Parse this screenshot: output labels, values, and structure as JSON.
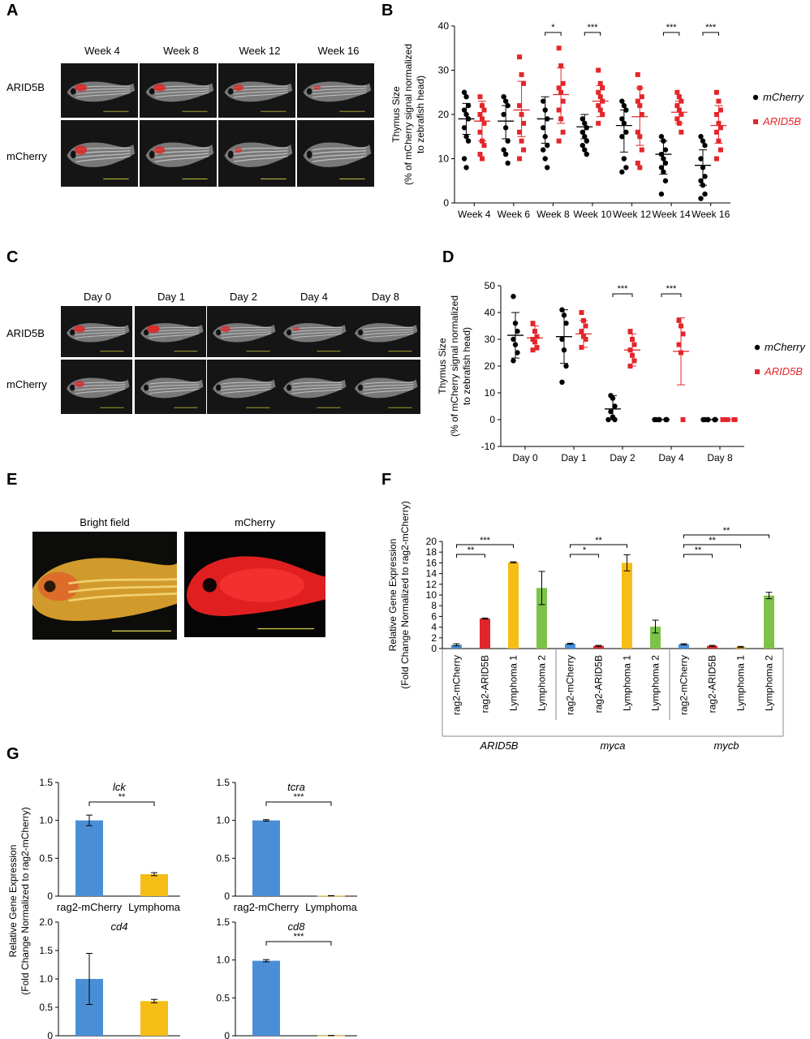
{
  "panels": {
    "A": {
      "label": "A",
      "columns": [
        "Week 4",
        "Week 8",
        "Week 12",
        "Week 16"
      ],
      "rows": [
        "ARID5B",
        "mCherry"
      ]
    },
    "B": {
      "label": "B",
      "ylabel_lines": [
        "Thymus Size",
        "(% of mCherry signal normalized",
        "to zebrafish head)"
      ],
      "legend": [
        {
          "name": "mCherry",
          "color": "#000000",
          "marker": "circle"
        },
        {
          "name": "ARID5B",
          "color": "#e3262b",
          "marker": "square"
        }
      ]
    },
    "C": {
      "label": "C",
      "columns": [
        "Day 0",
        "Day 1",
        "Day 2",
        "Day 4",
        "Day 8"
      ],
      "rows": [
        "ARID5B",
        "mCherry"
      ]
    },
    "D": {
      "label": "D",
      "ylabel_lines": [
        "Thymus Size",
        "(% of mCherry signal normalized",
        "to zebrafish head)"
      ],
      "legend": [
        {
          "name": "mCherry",
          "color": "#000000",
          "marker": "circle"
        },
        {
          "name": "ARID5B",
          "color": "#e3262b",
          "marker": "square"
        }
      ]
    },
    "E": {
      "label": "E",
      "columns": [
        "Bright field",
        "mCherry"
      ]
    },
    "F": {
      "label": "F",
      "ylabel_lines": [
        "Relative Gene Expression",
        "(Fold Change Normalized to rag2-mCherry)"
      ],
      "genes": [
        "ARID5B",
        "myca",
        "mycb"
      ]
    },
    "G": {
      "label": "G",
      "ylabel_lines": [
        "Relative Gene Expression",
        "(Fold Change Normalized to rag2-mCherry)"
      ]
    }
  },
  "chart_data": [
    {
      "id": "B",
      "type": "scatter",
      "categories": [
        "Week 4",
        "Week 6",
        "Week 8",
        "Week 10",
        "Week 12",
        "Week 14",
        "Week 16"
      ],
      "ylim": [
        0,
        40
      ],
      "yticks": [
        0,
        10,
        20,
        30,
        40
      ],
      "series": [
        {
          "name": "mCherry",
          "color": "#000000",
          "points": [
            [
              25,
              24,
              22,
              21,
              20,
              19,
              17,
              15,
              14,
              10,
              8
            ],
            [
              24,
              23,
              22,
              20,
              17,
              14,
              12,
              11,
              9
            ],
            [
              23,
              21,
              19,
              17,
              15,
              13,
              12,
              10,
              8
            ],
            [
              19,
              18,
              17,
              16,
              15,
              14,
              13,
              12,
              11
            ],
            [
              23,
              22,
              21,
              19,
              18,
              16,
              15,
              10,
              8,
              7
            ],
            [
              15,
              14,
              12,
              11,
              10,
              9,
              8,
              7,
              5,
              2
            ],
            [
              15,
              14,
              13,
              10,
              8,
              6,
              5,
              4,
              2,
              1
            ]
          ],
          "mean": [
            19,
            18.5,
            19,
            17.2,
            17.5,
            11,
            8.5
          ],
          "sd_low": [
            15.5,
            14.5,
            13.5,
            14.5,
            11.5,
            6.5,
            4
          ],
          "sd_high": [
            22.5,
            22,
            24,
            20,
            21,
            14,
            12
          ]
        },
        {
          "name": "ARID5B",
          "color": "#e3262b",
          "points": [
            [
              24,
              22,
              21,
              20,
              19,
              18,
              16,
              14,
              13,
              11,
              10
            ],
            [
              33,
              29,
              27,
              22,
              20,
              18,
              16,
              14,
              12,
              10
            ],
            [
              35,
              31,
              27,
              26,
              25,
              23,
              21,
              19,
              16,
              14
            ],
            [
              30,
              27,
              26,
              25,
              24,
              23,
              22,
              21,
              20,
              18
            ],
            [
              29,
              26,
              24,
              23,
              22,
              20,
              16,
              15,
              12,
              9,
              8
            ],
            [
              25,
              24,
              23,
              22,
              21,
              20,
              19,
              18,
              16
            ],
            [
              25,
              23,
              21,
              20,
              18,
              17,
              16,
              14,
              12,
              10
            ]
          ],
          "mean": [
            18.5,
            21,
            24.5,
            23,
            19.5,
            20.5,
            17.5
          ],
          "sd_low": [
            14,
            15,
            18,
            19.5,
            13,
            18,
            13.5
          ],
          "sd_high": [
            23,
            27.5,
            30.5,
            26.5,
            26,
            23,
            22
          ]
        }
      ],
      "significance": [
        {
          "category": "Week 8",
          "label": "*"
        },
        {
          "category": "Week 10",
          "label": "***"
        },
        {
          "category": "Week 14",
          "label": "***"
        },
        {
          "category": "Week 16",
          "label": "***"
        }
      ]
    },
    {
      "id": "D",
      "type": "scatter",
      "categories": [
        "Day 0",
        "Day 1",
        "Day 2",
        "Day 4",
        "Day 8"
      ],
      "ylim": [
        -10,
        50
      ],
      "yticks": [
        -10,
        0,
        10,
        20,
        30,
        40,
        50
      ],
      "series": [
        {
          "name": "mCherry",
          "color": "#000000",
          "points": [
            [
              46,
              36,
              33,
              30,
              28,
              25,
              22
            ],
            [
              41,
              39,
              36,
              30,
              26,
              20,
              14
            ],
            [
              9,
              8,
              5,
              3,
              1,
              0,
              0
            ],
            [
              0,
              0,
              0,
              0,
              0,
              0,
              0
            ],
            [
              0,
              0,
              0,
              0,
              0,
              0,
              0
            ]
          ],
          "mean": [
            31.5,
            31,
            4,
            0,
            0
          ],
          "sd_low": [
            23,
            21,
            0,
            0,
            0
          ],
          "sd_high": [
            40,
            41,
            9,
            0,
            0
          ]
        },
        {
          "name": "ARID5B",
          "color": "#e3262b",
          "points": [
            [
              36,
              33,
              31,
              30,
              29,
              27,
              26
            ],
            [
              40,
              37,
              35,
              33,
              31,
              30,
              27
            ],
            [
              33,
              30,
              28,
              26,
              24,
              22,
              20
            ],
            [
              37,
              35,
              32,
              28,
              25,
              0
            ],
            [
              0,
              0,
              0,
              0,
              0,
              0,
              0
            ]
          ],
          "mean": [
            30.5,
            32,
            26,
            25.5,
            0
          ],
          "sd_low": [
            26,
            27,
            20,
            13,
            0
          ],
          "sd_high": [
            35,
            37,
            32,
            38,
            0
          ]
        }
      ],
      "significance": [
        {
          "category": "Day 2",
          "label": "***"
        },
        {
          "category": "Day 4",
          "label": "***"
        }
      ]
    },
    {
      "id": "F",
      "type": "bar",
      "ylim": [
        0,
        20
      ],
      "yticks": [
        0,
        2,
        4,
        6,
        8,
        10,
        12,
        14,
        16,
        18,
        20
      ],
      "groups": [
        {
          "gene": "ARID5B",
          "bars": [
            {
              "label": "rag2-mCherry",
              "value": 0.7,
              "err": 0.2,
              "color": "#4a8fd6"
            },
            {
              "label": "rag2-ARID5B",
              "value": 5.6,
              "err": 0.1,
              "color": "#e3262b"
            },
            {
              "label": "Lymphoma 1",
              "value": 16.1,
              "err": 0.1,
              "color": "#f6bd16"
            },
            {
              "label": "Lymphoma 2",
              "value": 11.3,
              "err": 3.1,
              "color": "#7dc34a"
            }
          ]
        },
        {
          "gene": "myca",
          "bars": [
            {
              "label": "rag2-mCherry",
              "value": 0.9,
              "err": 0.1,
              "color": "#4a8fd6"
            },
            {
              "label": "rag2-ARID5B",
              "value": 0.5,
              "err": 0.1,
              "color": "#e3262b"
            },
            {
              "label": "Lymphoma 1",
              "value": 16.0,
              "err": 1.5,
              "color": "#f6bd16"
            },
            {
              "label": "Lymphoma 2",
              "value": 4.1,
              "err": 1.2,
              "color": "#7dc34a"
            }
          ]
        },
        {
          "gene": "mycb",
          "bars": [
            {
              "label": "rag2-mCherry",
              "value": 0.8,
              "err": 0.1,
              "color": "#4a8fd6"
            },
            {
              "label": "rag2-ARID5B",
              "value": 0.5,
              "err": 0.1,
              "color": "#e3262b"
            },
            {
              "label": "Lymphoma 1",
              "value": 0.3,
              "err": 0.1,
              "color": "#f6bd16"
            },
            {
              "label": "Lymphoma 2",
              "value": 9.9,
              "err": 0.6,
              "color": "#7dc34a"
            }
          ]
        }
      ],
      "significance": [
        {
          "group": 0,
          "from": 0,
          "to": 1,
          "label": "**"
        },
        {
          "group": 0,
          "from": 0,
          "to": 2,
          "label": "***"
        },
        {
          "group": 1,
          "from": 0,
          "to": 1,
          "label": "*"
        },
        {
          "group": 1,
          "from": 0,
          "to": 2,
          "label": "**"
        },
        {
          "group": 2,
          "from": 0,
          "to": 1,
          "label": "**"
        },
        {
          "group": 2,
          "from": 0,
          "to": 2,
          "label": "**"
        },
        {
          "group": 2,
          "from": 0,
          "to": 3,
          "label": "**"
        }
      ]
    },
    {
      "id": "G",
      "type": "bar",
      "subplots": [
        {
          "title": "lck",
          "ylim": [
            0,
            1.5
          ],
          "yticks": [
            0,
            0.5,
            1.0,
            1.5
          ],
          "yticklabels": [
            "0",
            "0.5",
            "1.0",
            "1.5"
          ],
          "bars": [
            {
              "label": "rag2-mCherry",
              "value": 1.0,
              "err": 0.07,
              "color": "#4a8fd6"
            },
            {
              "label": "Lymphoma",
              "value": 0.29,
              "err": 0.02,
              "color": "#f6bd16"
            }
          ],
          "sig": "**"
        },
        {
          "title": "tcra",
          "ylim": [
            0,
            1.5
          ],
          "yticks": [
            0,
            0.5,
            1.0,
            1.5
          ],
          "yticklabels": [
            "0",
            "0.5",
            "1.0",
            "1.5"
          ],
          "bars": [
            {
              "label": "rag2-mCherry",
              "value": 1.0,
              "err": 0.01,
              "color": "#4a8fd6"
            },
            {
              "label": "Lymphoma",
              "value": 0.005,
              "err": 0.002,
              "color": "#f6bd16"
            }
          ],
          "sig": "***"
        },
        {
          "title": "cd4",
          "ylim": [
            0,
            2.0
          ],
          "yticks": [
            0,
            0.5,
            1.0,
            1.5,
            2.0
          ],
          "yticklabels": [
            "0",
            "0.5",
            "1.0",
            "1.5",
            "2.0"
          ],
          "bars": [
            {
              "label": "rag2-mCherry",
              "value": 1.0,
              "err": 0.45,
              "color": "#4a8fd6"
            },
            {
              "label": "Lymphoma",
              "value": 0.61,
              "err": 0.03,
              "color": "#f6bd16"
            }
          ],
          "sig": ""
        },
        {
          "title": "cd8",
          "ylim": [
            0,
            1.5
          ],
          "yticks": [
            0,
            0.5,
            1.0,
            1.5
          ],
          "yticklabels": [
            "0",
            "0.5",
            "1.0",
            "1.5"
          ],
          "bars": [
            {
              "label": "rag2-mCherry",
              "value": 0.99,
              "err": 0.015,
              "color": "#4a8fd6"
            },
            {
              "label": "Lymphoma",
              "value": 0.003,
              "err": 0.001,
              "color": "#f6bd16"
            }
          ],
          "sig": "***"
        }
      ]
    }
  ]
}
